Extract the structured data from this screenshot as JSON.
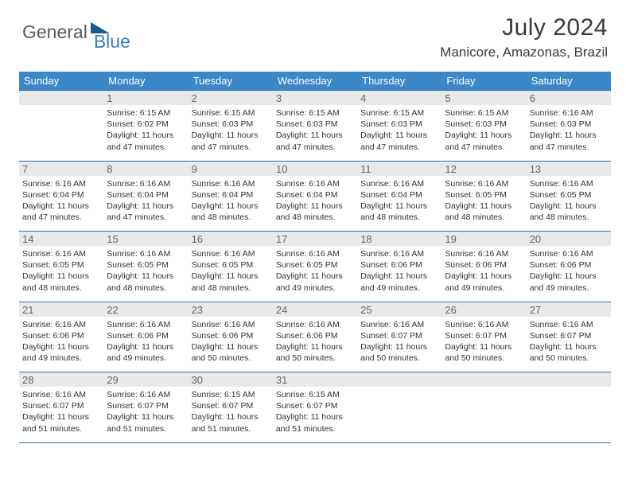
{
  "logo": {
    "text1": "General",
    "text2": "Blue"
  },
  "title": "July 2024",
  "location": "Manicore, Amazonas, Brazil",
  "colors": {
    "header_band": "#3b87c8",
    "daynum_band": "#e9e9e9",
    "rule": "#2f6ea8",
    "logo_tri": "#195a94"
  },
  "weekdays": [
    "Sunday",
    "Monday",
    "Tuesday",
    "Wednesday",
    "Thursday",
    "Friday",
    "Saturday"
  ],
  "weeks": [
    [
      null,
      {
        "n": 1,
        "sr": "6:15 AM",
        "ss": "6:02 PM",
        "dl": "11 hours and 47 minutes."
      },
      {
        "n": 2,
        "sr": "6:15 AM",
        "ss": "6:03 PM",
        "dl": "11 hours and 47 minutes."
      },
      {
        "n": 3,
        "sr": "6:15 AM",
        "ss": "6:03 PM",
        "dl": "11 hours and 47 minutes."
      },
      {
        "n": 4,
        "sr": "6:15 AM",
        "ss": "6:03 PM",
        "dl": "11 hours and 47 minutes."
      },
      {
        "n": 5,
        "sr": "6:15 AM",
        "ss": "6:03 PM",
        "dl": "11 hours and 47 minutes."
      },
      {
        "n": 6,
        "sr": "6:16 AM",
        "ss": "6:03 PM",
        "dl": "11 hours and 47 minutes."
      }
    ],
    [
      {
        "n": 7,
        "sr": "6:16 AM",
        "ss": "6:04 PM",
        "dl": "11 hours and 47 minutes."
      },
      {
        "n": 8,
        "sr": "6:16 AM",
        "ss": "6:04 PM",
        "dl": "11 hours and 47 minutes."
      },
      {
        "n": 9,
        "sr": "6:16 AM",
        "ss": "6:04 PM",
        "dl": "11 hours and 48 minutes."
      },
      {
        "n": 10,
        "sr": "6:16 AM",
        "ss": "6:04 PM",
        "dl": "11 hours and 48 minutes."
      },
      {
        "n": 11,
        "sr": "6:16 AM",
        "ss": "6:04 PM",
        "dl": "11 hours and 48 minutes."
      },
      {
        "n": 12,
        "sr": "6:16 AM",
        "ss": "6:05 PM",
        "dl": "11 hours and 48 minutes."
      },
      {
        "n": 13,
        "sr": "6:16 AM",
        "ss": "6:05 PM",
        "dl": "11 hours and 48 minutes."
      }
    ],
    [
      {
        "n": 14,
        "sr": "6:16 AM",
        "ss": "6:05 PM",
        "dl": "11 hours and 48 minutes."
      },
      {
        "n": 15,
        "sr": "6:16 AM",
        "ss": "6:05 PM",
        "dl": "11 hours and 48 minutes."
      },
      {
        "n": 16,
        "sr": "6:16 AM",
        "ss": "6:05 PM",
        "dl": "11 hours and 48 minutes."
      },
      {
        "n": 17,
        "sr": "6:16 AM",
        "ss": "6:05 PM",
        "dl": "11 hours and 49 minutes."
      },
      {
        "n": 18,
        "sr": "6:16 AM",
        "ss": "6:06 PM",
        "dl": "11 hours and 49 minutes."
      },
      {
        "n": 19,
        "sr": "6:16 AM",
        "ss": "6:06 PM",
        "dl": "11 hours and 49 minutes."
      },
      {
        "n": 20,
        "sr": "6:16 AM",
        "ss": "6:06 PM",
        "dl": "11 hours and 49 minutes."
      }
    ],
    [
      {
        "n": 21,
        "sr": "6:16 AM",
        "ss": "6:06 PM",
        "dl": "11 hours and 49 minutes."
      },
      {
        "n": 22,
        "sr": "6:16 AM",
        "ss": "6:06 PM",
        "dl": "11 hours and 49 minutes."
      },
      {
        "n": 23,
        "sr": "6:16 AM",
        "ss": "6:06 PM",
        "dl": "11 hours and 50 minutes."
      },
      {
        "n": 24,
        "sr": "6:16 AM",
        "ss": "6:06 PM",
        "dl": "11 hours and 50 minutes."
      },
      {
        "n": 25,
        "sr": "6:16 AM",
        "ss": "6:07 PM",
        "dl": "11 hours and 50 minutes."
      },
      {
        "n": 26,
        "sr": "6:16 AM",
        "ss": "6:07 PM",
        "dl": "11 hours and 50 minutes."
      },
      {
        "n": 27,
        "sr": "6:16 AM",
        "ss": "6:07 PM",
        "dl": "11 hours and 50 minutes."
      }
    ],
    [
      {
        "n": 28,
        "sr": "6:16 AM",
        "ss": "6:07 PM",
        "dl": "11 hours and 51 minutes."
      },
      {
        "n": 29,
        "sr": "6:16 AM",
        "ss": "6:07 PM",
        "dl": "11 hours and 51 minutes."
      },
      {
        "n": 30,
        "sr": "6:15 AM",
        "ss": "6:07 PM",
        "dl": "11 hours and 51 minutes."
      },
      {
        "n": 31,
        "sr": "6:15 AM",
        "ss": "6:07 PM",
        "dl": "11 hours and 51 minutes."
      },
      null,
      null,
      null
    ]
  ],
  "labels": {
    "sunrise": "Sunrise:",
    "sunset": "Sunset:",
    "daylight": "Daylight:"
  }
}
